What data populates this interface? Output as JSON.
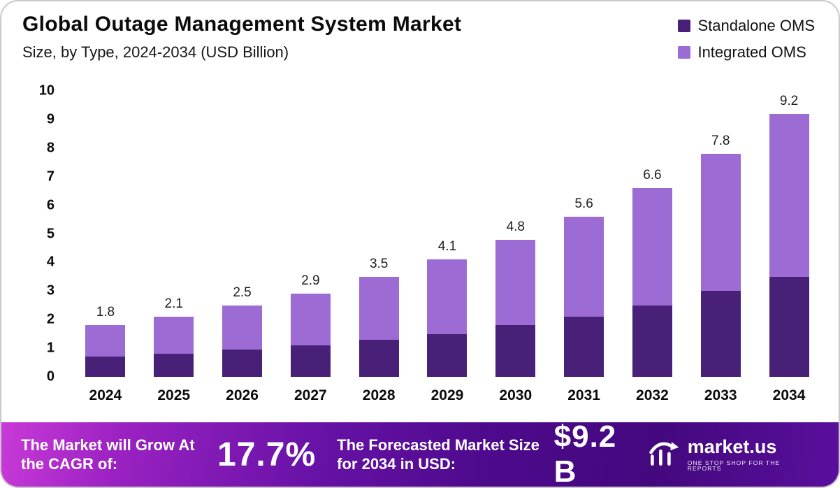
{
  "header": {
    "title": "Global Outage Management System Market",
    "subtitle": "Size, by Type, 2024-2034 (USD Billion)"
  },
  "legend": [
    {
      "label": "Standalone OMS",
      "color": "#482078"
    },
    {
      "label": "Integrated OMS",
      "color": "#9c6bd4"
    }
  ],
  "chart_data": {
    "type": "bar",
    "stacked": true,
    "title": "Global Outage Management System Market Size, by Type, 2024-2034 (USD Billion)",
    "xlabel": "",
    "ylabel": "",
    "ylim": [
      0,
      10
    ],
    "yticks": [
      0,
      1,
      2,
      3,
      4,
      5,
      6,
      7,
      8,
      9,
      10
    ],
    "grid": false,
    "legend_position": "top-right",
    "categories": [
      "2024",
      "2025",
      "2026",
      "2027",
      "2028",
      "2029",
      "2030",
      "2031",
      "2032",
      "2033",
      "2034"
    ],
    "series": [
      {
        "name": "Standalone OMS",
        "color": "#482078",
        "values": [
          0.7,
          0.8,
          0.95,
          1.1,
          1.3,
          1.5,
          1.8,
          2.1,
          2.5,
          3.0,
          3.5
        ]
      },
      {
        "name": "Integrated OMS",
        "color": "#9c6bd4",
        "values": [
          1.1,
          1.3,
          1.55,
          1.8,
          2.2,
          2.6,
          3.0,
          3.5,
          4.1,
          4.8,
          5.7
        ]
      }
    ],
    "totals": [
      1.8,
      2.1,
      2.5,
      2.9,
      3.5,
      4.1,
      4.8,
      5.6,
      6.6,
      7.8,
      9.2
    ],
    "total_labels": [
      "1.8",
      "2.1",
      "2.5",
      "2.9",
      "3.5",
      "4.1",
      "4.8",
      "5.6",
      "6.6",
      "7.8",
      "9.2"
    ]
  },
  "footer": {
    "cagr_label": "The Market will Grow At the CAGR of:",
    "cagr_value": "17.7%",
    "forecast_label": "The Forecasted Market Size for 2034 in USD:",
    "forecast_value": "$9.2 B",
    "brand": "market.us",
    "brand_tagline": "ONE STOP SHOP FOR THE REPORTS"
  }
}
